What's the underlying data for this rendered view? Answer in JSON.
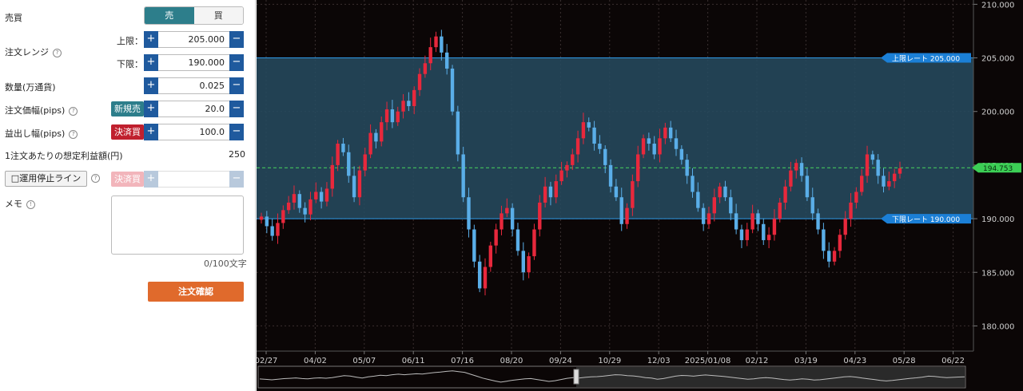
{
  "form": {
    "side_label": "売買",
    "sell_label": "売",
    "buy_label": "買",
    "range_label": "注文レンジ",
    "upper_label": "上限：",
    "upper_value": "205.000",
    "lower_label": "下限：",
    "lower_value": "190.000",
    "qty_label": "数量(万通貨)",
    "qty_value": "0.025",
    "width_label": "注文価幅(pips)",
    "width_tag": "新規売",
    "width_value": "20.0",
    "tp_label": "益出し幅(pips)",
    "tp_tag": "決済買",
    "tp_value": "100.0",
    "profit_label": "1注文あたりの想定利益額(円)",
    "profit_value": "250",
    "stop_button": "□運用停止ライン",
    "stop_tag": "決済買",
    "memo_label": "メモ",
    "memo_count": "0/100文字",
    "confirm_label": "注文確認",
    "plus": "+",
    "minus": "−",
    "help": "?",
    "info": "!"
  },
  "chart_data": {
    "type": "candlestick",
    "y_ticks": [
      "210.000",
      "205.000",
      "200.000",
      "195.000",
      "190.000",
      "185.000",
      "180.000"
    ],
    "y_tick_values": [
      210,
      205,
      200,
      195,
      190,
      185,
      180
    ],
    "ylim": [
      177.65,
      210.4
    ],
    "x_ticks": [
      "02/27",
      "04/02",
      "05/07",
      "06/11",
      "07/16",
      "08/20",
      "09/24",
      "10/29",
      "12/03",
      "2025/01/08",
      "02/12",
      "03/19",
      "04/23",
      "05/28",
      "06/22"
    ],
    "upper_rate_label": "上限レート 205.000",
    "upper_rate": 205.0,
    "lower_rate_label": "下限レート 190.000",
    "lower_rate": 190.0,
    "current_price_label": "194.753",
    "current_price": 194.753,
    "closes": [
      190.2,
      189.3,
      188.4,
      189.6,
      190.8,
      191.5,
      192.3,
      191.0,
      190.4,
      191.8,
      192.5,
      191.6,
      192.8,
      195.0,
      197.0,
      196.2,
      194.0,
      192.0,
      194.5,
      196.0,
      198.0,
      197.2,
      199.0,
      200.2,
      199.0,
      200.0,
      201.0,
      200.5,
      202.0,
      203.5,
      204.5,
      206.0,
      207.0,
      205.5,
      204.0,
      200.0,
      196.0,
      192.0,
      189.0,
      186.0,
      183.5,
      185.5,
      187.5,
      189.0,
      190.5,
      191.0,
      189.0,
      187.0,
      185.0,
      186.5,
      189.0,
      191.5,
      193.0,
      192.0,
      193.5,
      194.5,
      195.0,
      196.0,
      197.5,
      199.0,
      198.5,
      197.0,
      196.5,
      195.0,
      193.0,
      192.0,
      189.5,
      191.0,
      193.5,
      196.0,
      197.5,
      197.0,
      196.0,
      197.5,
      198.5,
      197.5,
      196.5,
      195.5,
      194.0,
      192.5,
      191.0,
      189.5,
      190.5,
      192.0,
      193.0,
      192.0,
      190.5,
      189.0,
      188.0,
      189.0,
      190.5,
      189.5,
      188.0,
      188.5,
      190.0,
      191.5,
      193.0,
      194.5,
      195.2,
      194.0,
      192.0,
      190.5,
      189.0,
      187.0,
      186.0,
      187.0,
      188.5,
      190.0,
      191.5,
      192.5,
      194.0,
      196.0,
      195.5,
      194.0,
      193.0,
      193.5,
      194.2,
      194.7
    ]
  }
}
